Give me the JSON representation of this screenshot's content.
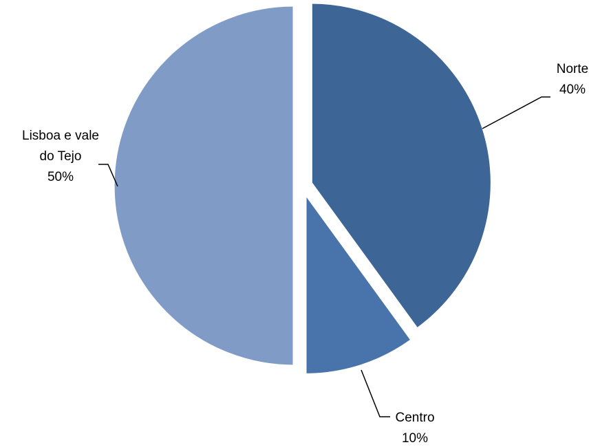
{
  "chart_data": {
    "type": "pie",
    "title": "",
    "categories": [
      "Norte",
      "Centro",
      "Lisboa e vale do Tejo"
    ],
    "values": [
      40,
      10,
      50
    ],
    "value_labels": [
      "40%",
      "10%",
      "50%"
    ],
    "label_lines": [
      [
        "Norte",
        "40%"
      ],
      [
        "Centro",
        "10%"
      ],
      [
        "Lisboa e vale",
        "do Tejo",
        "50%"
      ]
    ],
    "colors": [
      "#3d6596",
      "#4874ab",
      "#7f9bc6"
    ],
    "exploded": true,
    "legend": "none"
  }
}
